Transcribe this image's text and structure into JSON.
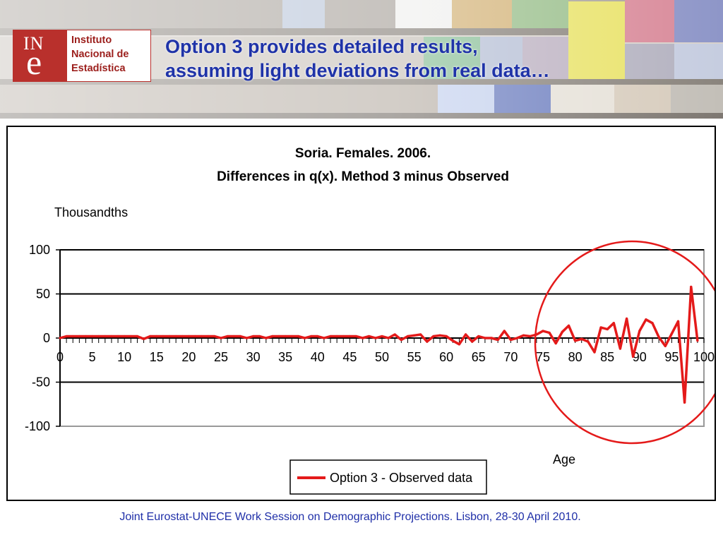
{
  "header": {
    "logo": {
      "mark_top": "IN",
      "mark_bottom": "e",
      "line1": "Instituto",
      "line2": "Nacional de",
      "line3": "Estadística"
    },
    "headline_line1": "Option 3 provides detailed results,",
    "headline_line2": "assuming light deviations from real data…"
  },
  "colors": {
    "headline": "#1f33a8",
    "logo_red": "#b9302c",
    "series": "#e41a1a",
    "highlight_circle": "#e41a1a",
    "footer": "#1f2fa8"
  },
  "chart_data": {
    "type": "line",
    "title": "Soria. Females. 2006.",
    "subtitle": "Differences in q(x). Method 3 minus Observed",
    "ylabel": "Thousandths",
    "xlabel": "Age",
    "ylim": [
      -100,
      100
    ],
    "yticks": [
      100,
      50,
      0,
      -50,
      -100
    ],
    "xlim": [
      0,
      100
    ],
    "xticks": [
      0,
      5,
      10,
      15,
      20,
      25,
      30,
      35,
      40,
      45,
      50,
      55,
      60,
      65,
      70,
      75,
      80,
      85,
      90,
      95,
      100
    ],
    "grid": true,
    "legend_position": "bottom-center",
    "series": [
      {
        "name": "Option 3 - Observed data",
        "x": [
          0,
          1,
          2,
          3,
          4,
          5,
          6,
          7,
          8,
          9,
          10,
          11,
          12,
          13,
          14,
          15,
          16,
          17,
          18,
          19,
          20,
          21,
          22,
          23,
          24,
          25,
          26,
          27,
          28,
          29,
          30,
          31,
          32,
          33,
          34,
          35,
          36,
          37,
          38,
          39,
          40,
          41,
          42,
          43,
          44,
          45,
          46,
          47,
          48,
          49,
          50,
          51,
          52,
          53,
          54,
          55,
          56,
          57,
          58,
          59,
          60,
          61,
          62,
          63,
          64,
          65,
          66,
          67,
          68,
          69,
          70,
          71,
          72,
          73,
          74,
          75,
          76,
          77,
          78,
          79,
          80,
          81,
          82,
          83,
          84,
          85,
          86,
          87,
          88,
          89,
          90,
          91,
          92,
          93,
          94,
          95,
          96,
          97,
          98,
          99
        ],
        "values": [
          0,
          2,
          2,
          2,
          2,
          2,
          2,
          2,
          2,
          2,
          2,
          2,
          2,
          -1,
          2,
          2,
          2,
          2,
          2,
          2,
          2,
          2,
          2,
          2,
          2,
          0,
          2,
          2,
          2,
          0,
          2,
          2,
          0,
          2,
          2,
          2,
          2,
          2,
          0,
          2,
          2,
          0,
          2,
          2,
          2,
          2,
          2,
          0,
          2,
          0,
          2,
          0,
          4,
          -2,
          2,
          3,
          4,
          -4,
          2,
          3,
          2,
          -3,
          -7,
          4,
          -4,
          2,
          0,
          0,
          -2,
          8,
          -2,
          0,
          3,
          2,
          4,
          8,
          6,
          -6,
          7,
          14,
          -3,
          -1,
          -4,
          -16,
          12,
          10,
          17,
          -12,
          22,
          -21,
          8,
          21,
          17,
          1,
          -9,
          5,
          19,
          -73,
          58,
          -3
        ]
      }
    ],
    "annotations": [
      {
        "type": "circle",
        "note": ""
      }
    ]
  },
  "footer": {
    "text": "Joint Eurostat-UNECE Work Session on Demographic Projections. Lisbon, 28-30 April 2010."
  }
}
